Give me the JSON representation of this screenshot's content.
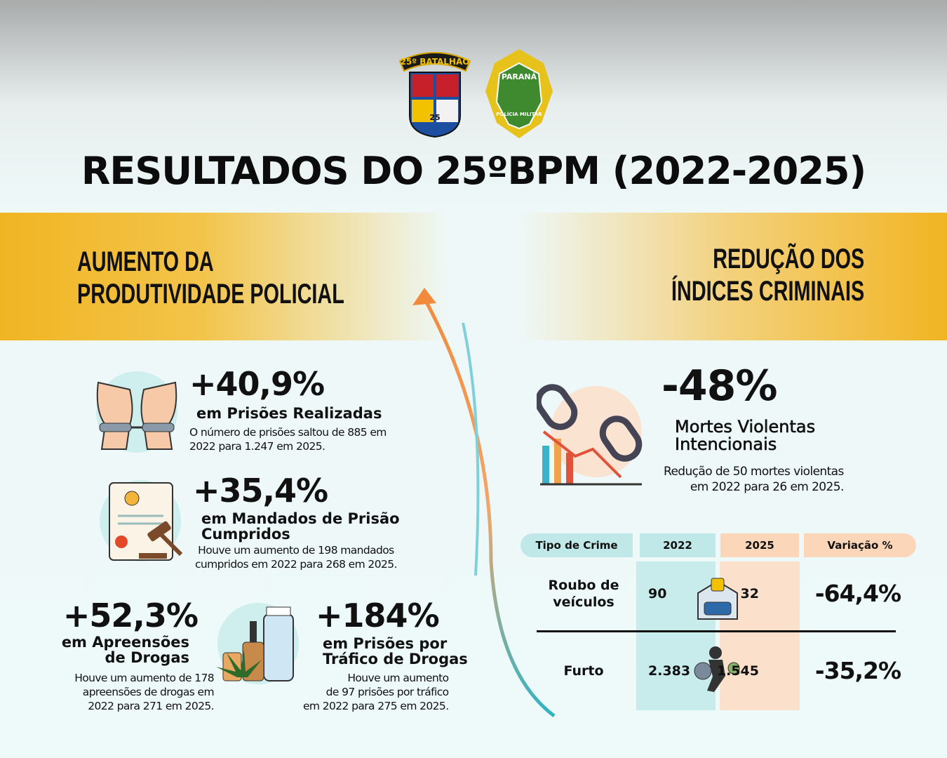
{
  "logos": {
    "battalion_banner": "25º BATALHÃO",
    "battalion_number": "25",
    "pm_top": "PARANÁ",
    "pm_bottom": "POLÍCIA MILITAR"
  },
  "title": "RESULTADOS DO 25ºBPM (2022-2025)",
  "left_header": [
    "AUMENTO DA",
    "PRODUTIVIDADE POLICIAL"
  ],
  "right_header": [
    "REDUÇÃO DOS",
    "ÍNDICES CRIMINAIS"
  ],
  "productivity": [
    {
      "value": "+40,9%",
      "label": [
        "em Prisões Realizadas"
      ],
      "description": [
        "O número de prisões saltou de 885 em",
        "2022 para 1.247 em 2025."
      ]
    },
    {
      "value": "+35,4%",
      "label": [
        "em Mandados de Prisão",
        "Cumpridos"
      ],
      "description": [
        "Houve um aumento de 198 mandados",
        "cumpridos em 2022 para 268 em 2025."
      ]
    },
    {
      "value": "+52,3%",
      "label": [
        "em Apreensões",
        "de Drogas"
      ],
      "description": [
        "Houve um aumento de 178",
        "apreensões de drogas em",
        "2022 para 271 em 2025."
      ]
    },
    {
      "value": "+184%",
      "label": [
        "em Prisões por",
        "Tráfico de Drogas"
      ],
      "description": [
        "Houve um aumento",
        "de 97 prisões por tráfico",
        "em 2022 para 275 em 2025."
      ]
    }
  ],
  "reduction": {
    "value": "-48%",
    "label": [
      "Mortes Violentas",
      "Intencionais"
    ],
    "description": [
      "Redução de 50 mortes violentas",
      "em 2022 para 26 em 2025."
    ]
  },
  "table": {
    "headers": [
      "Tipo de Crime",
      "2022",
      "2025",
      "Variação %"
    ],
    "rows": [
      [
        "Roubo de veículos",
        "90",
        "32",
        "-64,4%"
      ],
      [
        "Furto",
        "2.383",
        "1.545",
        "-35,2%"
      ]
    ]
  }
}
